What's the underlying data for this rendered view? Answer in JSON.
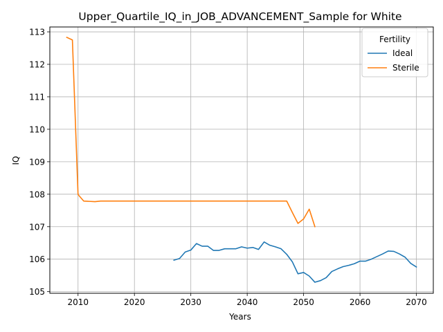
{
  "chart_data": {
    "type": "line",
    "title": "Upper_Quartile_IQ_in_JOB_ADVANCEMENT_Sample for White",
    "xlabel": "Years",
    "ylabel": "IQ",
    "xlim": [
      2005,
      2073
    ],
    "ylim": [
      104.95,
      113.15
    ],
    "xticks": [
      2010,
      2020,
      2030,
      2040,
      2050,
      2060,
      2070
    ],
    "yticks": [
      105,
      106,
      107,
      108,
      109,
      110,
      111,
      112,
      113
    ],
    "grid": true,
    "legend": {
      "title": "Fertility",
      "placement": "top-right"
    },
    "series": [
      {
        "name": "Ideal",
        "color": "#1f77b4",
        "x": [
          2027,
          2028,
          2029,
          2030,
          2031,
          2032,
          2033,
          2034,
          2035,
          2036,
          2037,
          2038,
          2039,
          2040,
          2041,
          2042,
          2043,
          2044,
          2045,
          2046,
          2047,
          2048,
          2049,
          2050,
          2051,
          2052,
          2053,
          2054,
          2055,
          2056,
          2057,
          2058,
          2059,
          2060,
          2061,
          2062,
          2063,
          2064,
          2065,
          2066,
          2067,
          2068,
          2069,
          2070
        ],
        "y": [
          105.97,
          106.02,
          106.22,
          106.28,
          106.48,
          106.4,
          106.4,
          106.27,
          106.27,
          106.32,
          106.32,
          106.32,
          106.38,
          106.34,
          106.36,
          106.3,
          106.53,
          106.43,
          106.38,
          106.32,
          106.15,
          105.92,
          105.55,
          105.59,
          105.48,
          105.29,
          105.34,
          105.43,
          105.62,
          105.7,
          105.77,
          105.81,
          105.86,
          105.94,
          105.94,
          106.0,
          106.08,
          106.16,
          106.25,
          106.24,
          106.16,
          106.06,
          105.87,
          105.76
        ]
      },
      {
        "name": "Sterile",
        "color": "#ff7f0e",
        "x": [
          2008,
          2009,
          2010,
          2011,
          2012,
          2013,
          2014,
          2015,
          2016,
          2017,
          2018,
          2019,
          2020,
          2021,
          2022,
          2023,
          2024,
          2025,
          2026,
          2027,
          2028,
          2029,
          2030,
          2031,
          2032,
          2033,
          2034,
          2035,
          2036,
          2037,
          2038,
          2039,
          2040,
          2041,
          2042,
          2043,
          2044,
          2045,
          2046,
          2047,
          2048,
          2049,
          2050,
          2051,
          2052
        ],
        "y": [
          112.83,
          112.75,
          107.99,
          107.79,
          107.78,
          107.77,
          107.79,
          107.79,
          107.79,
          107.79,
          107.79,
          107.79,
          107.79,
          107.79,
          107.79,
          107.79,
          107.79,
          107.79,
          107.79,
          107.79,
          107.79,
          107.79,
          107.79,
          107.79,
          107.79,
          107.79,
          107.79,
          107.79,
          107.79,
          107.79,
          107.79,
          107.79,
          107.79,
          107.79,
          107.79,
          107.79,
          107.79,
          107.79,
          107.79,
          107.79,
          107.44,
          107.1,
          107.24,
          107.54,
          107.0
        ]
      }
    ]
  }
}
